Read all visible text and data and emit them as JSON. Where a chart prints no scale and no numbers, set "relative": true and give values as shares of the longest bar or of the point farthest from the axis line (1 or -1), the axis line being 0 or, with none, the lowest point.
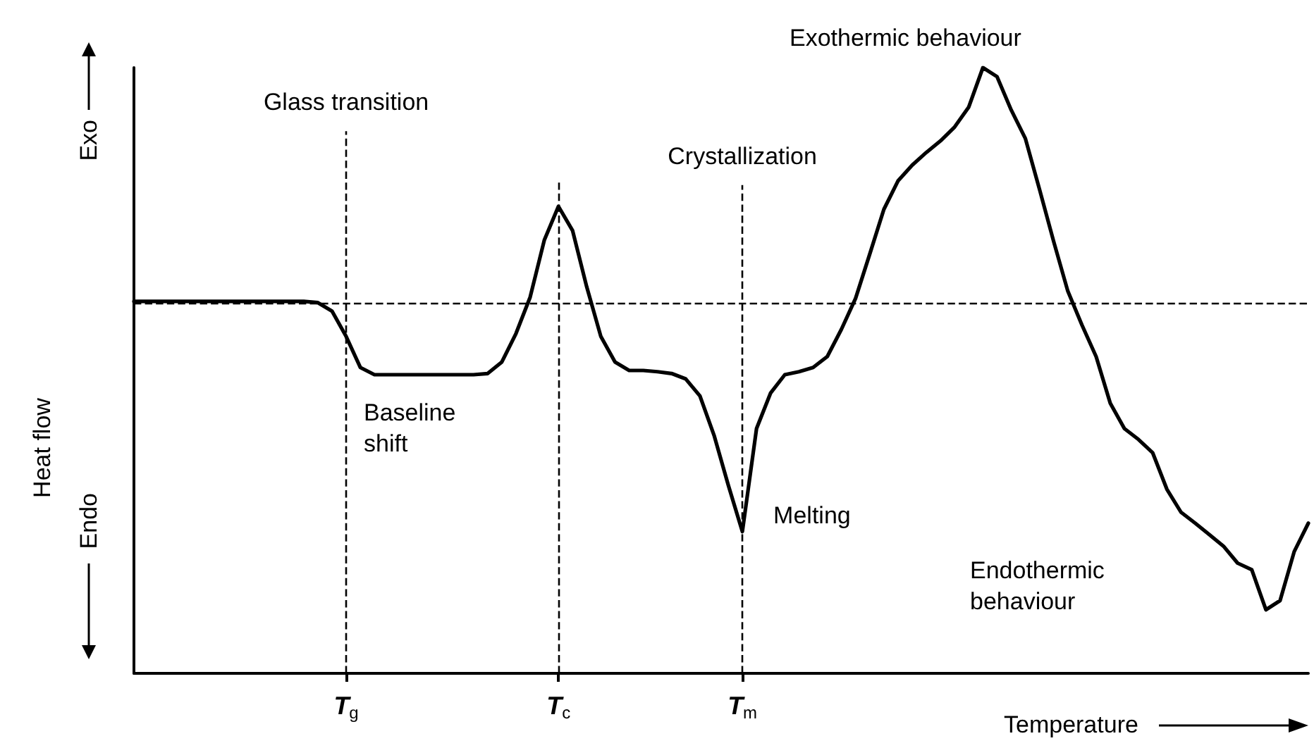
{
  "chart_data": {
    "type": "line",
    "relative": true,
    "xlabel": "Temperature",
    "ylabel": "Heat flow",
    "categories": [
      null,
      null,
      null,
      null,
      null,
      null,
      null,
      null,
      null,
      null,
      null,
      null,
      null,
      null,
      null,
      "T$_{g}$",
      null,
      null,
      null,
      null,
      null,
      null,
      null,
      null,
      null,
      null,
      null,
      null,
      null,
      null,
      "T$_{c}$",
      null,
      null,
      null,
      null,
      null,
      null,
      null,
      null,
      null,
      null,
      null,
      null,
      "T$_{m}$",
      null,
      null,
      null,
      null,
      null,
      null,
      null,
      null,
      null,
      null,
      null,
      null,
      null,
      null,
      null,
      null,
      null,
      null,
      null,
      null,
      null,
      null,
      null,
      null,
      null,
      null,
      null,
      null,
      null,
      null,
      null,
      null,
      null,
      null,
      null,
      null,
      null,
      null,
      null,
      null
    ],
    "series": [
      {
        "color": "#000000",
        "values": [
          0.614,
          0.614,
          0.614,
          0.614,
          0.614,
          0.614,
          0.614,
          0.614,
          0.614,
          0.614,
          0.614,
          0.614,
          0.614,
          0.612,
          0.598,
          0.556,
          0.505,
          0.493,
          0.493,
          0.493,
          0.493,
          0.493,
          0.493,
          0.493,
          0.493,
          0.495,
          0.514,
          0.561,
          0.621,
          0.715,
          0.771,
          0.731,
          0.638,
          0.556,
          0.514,
          0.5,
          0.5,
          0.498,
          0.495,
          0.486,
          0.458,
          0.393,
          0.311,
          0.234,
          0.404,
          0.463,
          0.493,
          0.498,
          0.505,
          0.523,
          0.568,
          0.619,
          0.692,
          0.766,
          0.813,
          0.839,
          0.86,
          0.879,
          0.902,
          0.935,
          1.0,
          0.985,
          0.93,
          0.883,
          0.799,
          0.713,
          0.631,
          0.575,
          0.523,
          0.446,
          0.404,
          0.386,
          0.364,
          0.304,
          0.266,
          0.248,
          0.229,
          0.21,
          0.182,
          0.171,
          0.105,
          0.12,
          0.201,
          0.248
        ]
      }
    ],
    "line_style": "solid",
    "marker": "none",
    "grid": false,
    "ref_lines": [
      {
        "axis": "x",
        "value": "T$_{g}$",
        "label": "Glass transition",
        "line_style": "dashed"
      },
      {
        "axis": "x",
        "value": "T$_{c}$",
        "line_style": "dashed"
      },
      {
        "axis": "x",
        "value": "T$_{m}$",
        "label": "Crystallization",
        "line_style": "dashed"
      },
      {
        "axis": "y",
        "value": 0.614,
        "line_style": "dashed"
      }
    ],
    "annotations": [
      "Exothermic behaviour",
      "Baseline shift",
      {
        "text": "Melting",
        "x": "T$_{m}$",
        "y": 0.234
      },
      "Endothermic behaviour",
      "Exo",
      "Endo"
    ]
  }
}
